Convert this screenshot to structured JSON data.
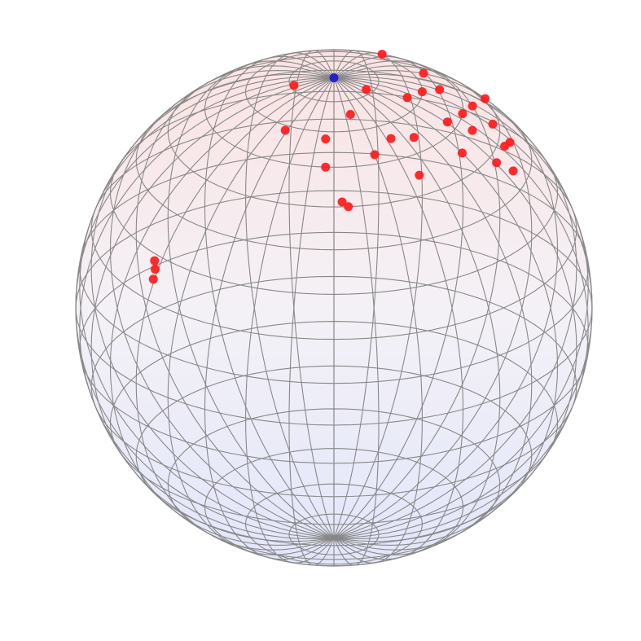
{
  "chart_data": {
    "type": "globe",
    "grid": true,
    "series": [
      {
        "color": "#ff1a1a",
        "lat": [
          61.5,
          46.5,
          43.9,
          62.3,
          65.8,
          51.2,
          67.8,
          80.8,
          28.6,
          24.8,
          68.6,
          56.6,
          66.2,
          81.5,
          72.8,
          62.5,
          60,
          48.2,
          65.4,
          57.2,
          75.2,
          54.8,
          48.1,
          47,
          52,
          60,
          70,
          55,
          64,
          27,
          50
        ],
        "lon": [
          157,
          121.7,
          74.5,
          71,
          32.6,
          2.9,
          -4.9,
          -75.8,
          -52.3,
          -50.4,
          -31.1,
          76.9,
          120.7,
          58,
          74,
          20,
          -3.7,
          82.8,
          100.8,
          97.7,
          14.5,
          35,
          70.6,
          88,
          92,
          85,
          90,
          60,
          45,
          -51,
          5
        ]
      },
      {
        "color": "#1a1acc",
        "lat": [
          90
        ],
        "lon": [
          0
        ]
      }
    ]
  }
}
